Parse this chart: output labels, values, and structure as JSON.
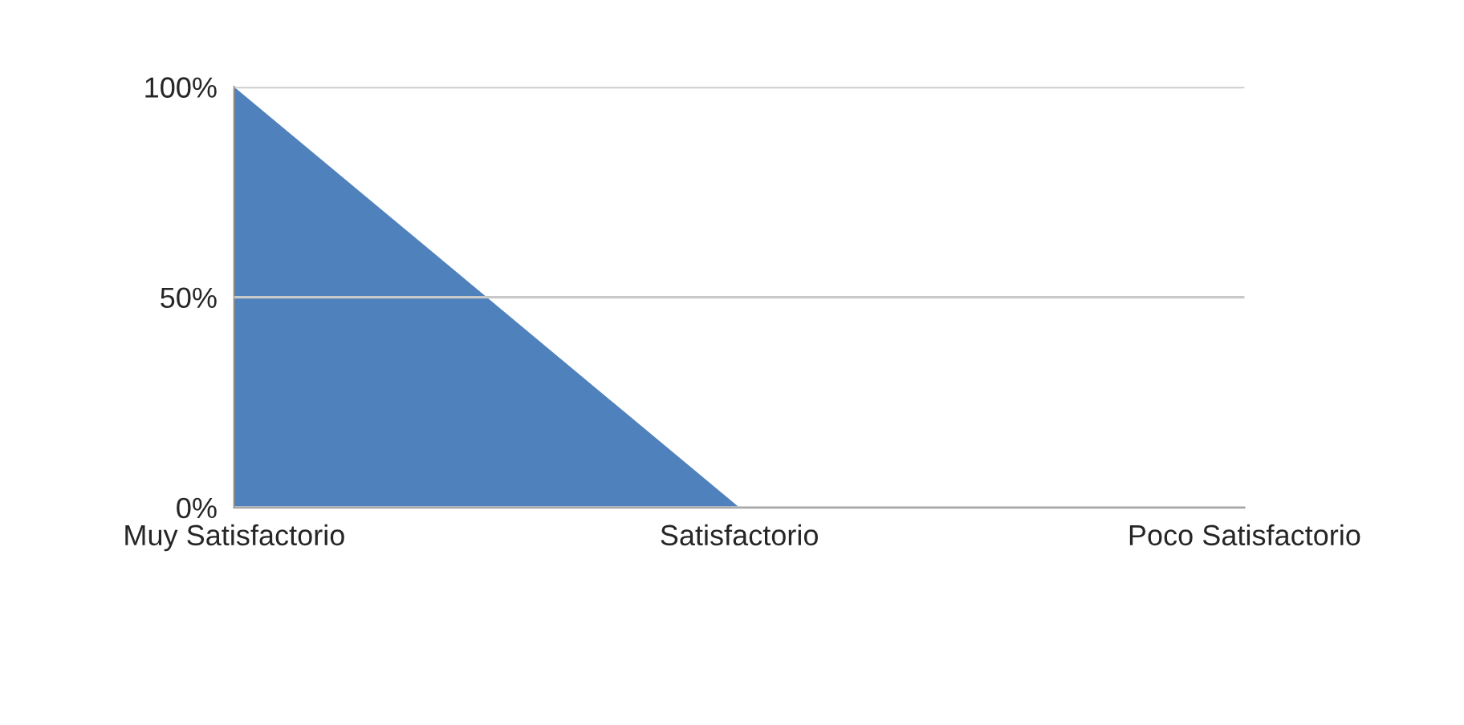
{
  "chart_data": {
    "type": "area",
    "categories": [
      "Muy Satisfactorio",
      "Satisfactorio",
      "Poco Satisfactorio"
    ],
    "series": [
      {
        "color": "#4f81bd",
        "values": [
          100,
          0,
          0
        ]
      }
    ],
    "ylim": [
      0,
      100
    ],
    "yticks": [
      {
        "value": 0,
        "label": "0%"
      },
      {
        "value": 50,
        "label": "50%"
      },
      {
        "value": 100,
        "label": "100%"
      }
    ],
    "grid": "y",
    "legend": false
  }
}
